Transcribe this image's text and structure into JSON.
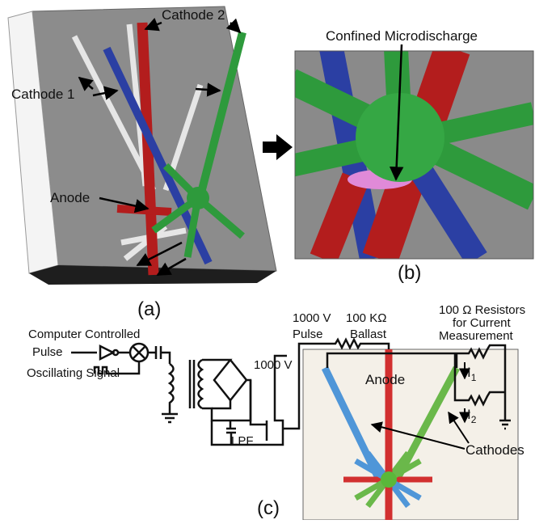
{
  "panel_a": {
    "cathode_2": "Cathode 2",
    "cathode_1": "Cathode 1",
    "anode": "Anode",
    "caption": "(a)"
  },
  "panel_b": {
    "label": "Confined Microdischarge",
    "caption": "(b)"
  },
  "panel_c": {
    "computer_label": [
      "Computer Controlled",
      "Pulse"
    ],
    "oscillating": "Oscillating Signal",
    "pulse_label": [
      "1000 V",
      "Pulse"
    ],
    "ballast": [
      "100 KΩ",
      "Ballast"
    ],
    "supply": "1000 V",
    "resistors": [
      "100 Ω Resistors",
      "for Current",
      "Measurement"
    ],
    "anode": "Anode",
    "current_1": {
      "symbol": "I",
      "subscript": "1"
    },
    "current_2": {
      "symbol": "I",
      "subscript": "2"
    },
    "filter": "LPF",
    "cathodes": "Cathodes",
    "caption": "(c)"
  }
}
